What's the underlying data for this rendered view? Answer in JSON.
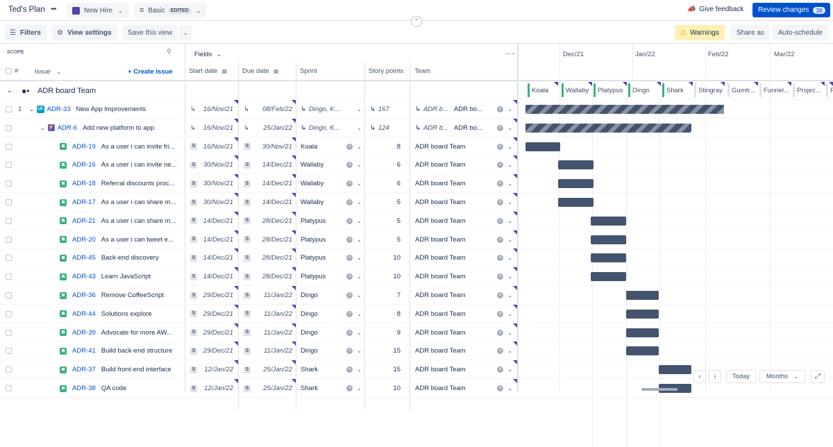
{
  "topbar": {
    "plan_title": "Ted's Plan",
    "more": "•••",
    "scenario": "New Hire",
    "view": "Basic",
    "edited_badge": "EDITED",
    "give_feedback": "Give feedback",
    "review_changes": "Review changes",
    "review_count": "38"
  },
  "toolbar": {
    "filters": "Filters",
    "view_settings": "View settings",
    "save_view": "Save this view",
    "warnings": "Warnings",
    "share_as": "Share as",
    "auto_schedule": "Auto-schedule"
  },
  "header": {
    "scope": "SCOPE",
    "hash": "#",
    "issue": "Issue",
    "create_issue": "+ Create issue",
    "fields": "Fields",
    "start_date": "Start date",
    "due_date": "Due date",
    "date_badge": "D",
    "sprint": "Sprint",
    "story_points": "Story points",
    "team": "Team",
    "months": [
      "Dec/21",
      "Jan/22",
      "Feb/22",
      "Mar/22"
    ]
  },
  "group": {
    "name": "ADR board Team",
    "sprints": [
      "Koala",
      "Wallaby",
      "Platypus",
      "Dingo",
      "Shark",
      "Stingray",
      "Gumtr...",
      "Funnel...",
      "Projec...",
      "P"
    ]
  },
  "rows": [
    {
      "num": "1",
      "key": "ADR-33",
      "summary": "New App Improvements",
      "start": "16/Nov/21",
      "due": "08/Feb/22",
      "sprint": "Dingo, K...",
      "points": "167",
      "team": "ADR b...",
      "team2": "ADR bo...",
      "level": 0,
      "type": "epic"
    },
    {
      "num": "",
      "key": "ADR-6",
      "summary": "Add new platform to app",
      "start": "16/Nov/21",
      "due": "25/Jan/22",
      "sprint": "Dingo, K...",
      "points": "124",
      "team": "ADR b...",
      "team2": "ADR bo...",
      "level": 1,
      "type": "initiative"
    },
    {
      "num": "",
      "key": "ADR-19",
      "summary": "As a user i can invite fri...",
      "start": "16/Nov/21",
      "due": "30/Nov/21",
      "sprint": "Koala",
      "points": "8",
      "team": "ADR board Team",
      "level": 2,
      "type": "story"
    },
    {
      "num": "",
      "key": "ADR-16",
      "summary": "As a user i can invite ne...",
      "start": "30/Nov/21",
      "due": "14/Dec/21",
      "sprint": "Wallaby",
      "points": "6",
      "team": "ADR board Team",
      "level": 2,
      "type": "story"
    },
    {
      "num": "",
      "key": "ADR-18",
      "summary": "Referral discounts proc...",
      "start": "30/Nov/21",
      "due": "14/Dec/21",
      "sprint": "Wallaby",
      "points": "6",
      "team": "ADR board Team",
      "level": 2,
      "type": "story"
    },
    {
      "num": "",
      "key": "ADR-17",
      "summary": "As a user i can share m...",
      "start": "30/Nov/21",
      "due": "14/Dec/21",
      "sprint": "Wallaby",
      "points": "5",
      "team": "ADR board Team",
      "level": 2,
      "type": "story"
    },
    {
      "num": "",
      "key": "ADR-21",
      "summary": "As a user i can share m...",
      "start": "14/Dec/21",
      "due": "28/Dec/21",
      "sprint": "Platypus",
      "points": "5",
      "team": "ADR board Team",
      "level": 2,
      "type": "story"
    },
    {
      "num": "",
      "key": "ADR-20",
      "summary": "As a user i can tweet e...",
      "start": "14/Dec/21",
      "due": "28/Dec/21",
      "sprint": "Platypus",
      "points": "5",
      "team": "ADR board Team",
      "level": 2,
      "type": "story"
    },
    {
      "num": "",
      "key": "ADR-45",
      "summary": "Back-end discovery",
      "start": "14/Dec/21",
      "due": "28/Dec/21",
      "sprint": "Platypus",
      "points": "10",
      "team": "ADR board Team",
      "level": 2,
      "type": "story"
    },
    {
      "num": "",
      "key": "ADR-43",
      "summary": "Learn JavaScript",
      "start": "14/Dec/21",
      "due": "28/Dec/21",
      "sprint": "Platypus",
      "points": "10",
      "team": "ADR board Team",
      "level": 2,
      "type": "story"
    },
    {
      "num": "",
      "key": "ADR-36",
      "summary": "Remove CoffeeScript",
      "start": "29/Dec/21",
      "due": "11/Jan/22",
      "sprint": "Dingo",
      "points": "7",
      "team": "ADR board Team",
      "level": 2,
      "type": "story"
    },
    {
      "num": "",
      "key": "ADR-44",
      "summary": "Solutions explore",
      "start": "29/Dec/21",
      "due": "11/Jan/22",
      "sprint": "Dingo",
      "points": "8",
      "team": "ADR board Team",
      "level": 2,
      "type": "story"
    },
    {
      "num": "",
      "key": "ADR-39",
      "summary": "Advocate for more AW...",
      "start": "29/Dec/21",
      "due": "11/Jan/22",
      "sprint": "Dingo",
      "points": "9",
      "team": "ADR board Team",
      "level": 2,
      "type": "story"
    },
    {
      "num": "",
      "key": "ADR-41",
      "summary": "Build back-end structure",
      "start": "29/Dec/21",
      "due": "11/Jan/22",
      "sprint": "Dingo",
      "points": "15",
      "team": "ADR board Team",
      "level": 2,
      "type": "story"
    },
    {
      "num": "",
      "key": "ADR-37",
      "summary": "Build front-end interface",
      "start": "12/Jan/22",
      "due": "25/Jan/22",
      "sprint": "Shark",
      "points": "15",
      "team": "ADR board Team",
      "level": 2,
      "type": "story"
    },
    {
      "num": "",
      "key": "ADR-38",
      "summary": "QA code",
      "start": "12/Jan/22",
      "due": "25/Jan/22",
      "sprint": "Shark",
      "points": "10",
      "team": "ADR board Team",
      "level": 2,
      "type": "story"
    }
  ],
  "timeline_controls": {
    "today": "Today",
    "months": "Months"
  }
}
